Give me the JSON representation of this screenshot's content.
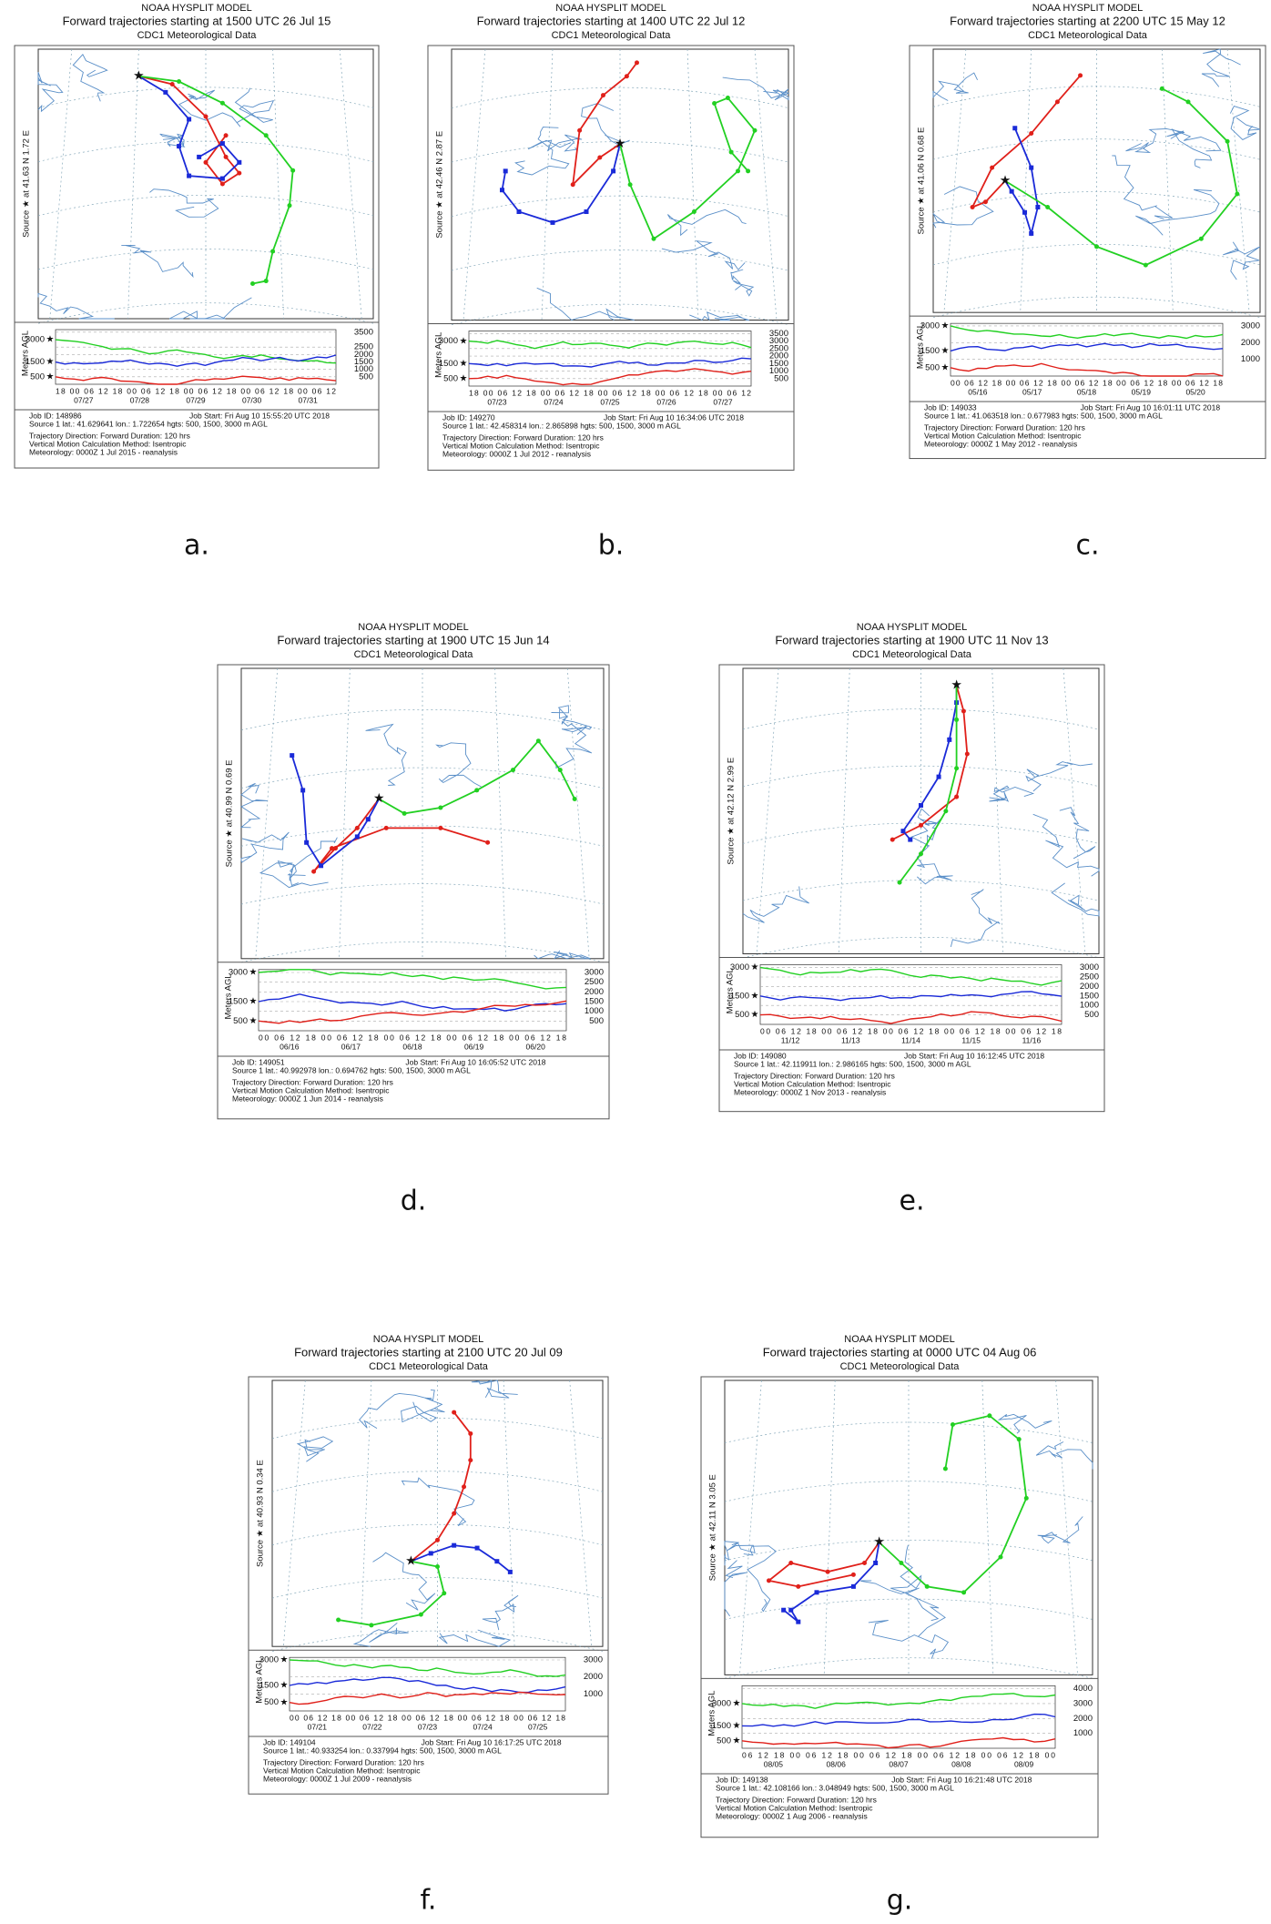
{
  "panels": [
    {
      "letter": "a.",
      "model": "NOAA HYSPLIT MODEL",
      "title": "Forward trajectories starting at 1500 UTC 26 Jul 15",
      "met_title": "CDC1 Meteorological Data",
      "source": "Source ★ at 41.63 N 1.72 E",
      "y_label": "Meters AGL",
      "levels": [
        3000,
        1500,
        500
      ],
      "right_ticks": [
        3500,
        2500,
        2000,
        1500,
        1000,
        500
      ],
      "hours": "18 00 06 12 18 00 06 12 18 00 06 12 18 00 06 12 18 00 06 12",
      "dates": [
        "07/27",
        "07/28",
        "07/29",
        "07/30",
        "07/31"
      ],
      "job_id": "Job ID: 148986",
      "job_start": "Job Start: Fri Aug 10 15:55:20 UTC 2018",
      "footer": [
        "Source 1 lat.: 41.629641 lon.: 1.722654 hgts: 500, 1500, 3000 m AGL",
        "Trajectory Direction: Forward    Duration: 120 hrs",
        "Vertical Motion Calculation Method:    Isentropic",
        "Meteorology: 0000Z 1 Jul 2015 - reanalysis"
      ]
    },
    {
      "letter": "b.",
      "model": "NOAA HYSPLIT MODEL",
      "title": "Forward trajectories starting at 1400 UTC 22 Jul 12",
      "met_title": "CDC1 Meteorological Data",
      "source": "Source ★ at 42.46 N 2.87 E",
      "y_label": "Meters AGL",
      "levels": [
        3000,
        1500,
        500
      ],
      "right_ticks": [
        3500,
        3000,
        2500,
        2000,
        1500,
        1000,
        500
      ],
      "hours": "18 00 06 12 18 00 06 12 18 00 06 12 18 00 06 12 18 00 06 12",
      "dates": [
        "07/23",
        "07/24",
        "07/25",
        "07/26",
        "07/27"
      ],
      "job_id": "Job ID: 149270",
      "job_start": "Job Start: Fri Aug 10 16:34:06 UTC 2018",
      "footer": [
        "Source 1 lat.: 42.458314 lon.: 2.865898 hgts: 500, 1500, 3000 m AGL",
        "Trajectory Direction: Forward    Duration: 120 hrs",
        "Vertical Motion Calculation Method:    Isentropic",
        "Meteorology: 0000Z 1 Jul 2012 - reanalysis"
      ]
    },
    {
      "letter": "c.",
      "model": "NOAA HYSPLIT MODEL",
      "title": "Forward trajectories starting at 2200 UTC 15 May 12",
      "met_title": "CDC1 Meteorological Data",
      "source": "Source ★ at 41.06 N 0.68 E",
      "y_label": "Meters AGL",
      "levels": [
        3000,
        1500,
        500
      ],
      "right_ticks": [
        3000,
        2000,
        1000
      ],
      "hours": "00 06 12 18 00 06 12 18 00 06 12 18 00 06 12 18 00 06 12 18",
      "dates": [
        "05/16",
        "05/17",
        "05/18",
        "05/19",
        "05/20"
      ],
      "job_id": "Job ID: 149033",
      "job_start": "Job Start: Fri Aug 10 16:01:11 UTC 2018",
      "footer": [
        "Source 1 lat.: 41.063518 lon.: 0.677983 hgts: 500, 1500, 3000 m AGL",
        "Trajectory Direction: Forward    Duration: 120 hrs",
        "Vertical Motion Calculation Method:    Isentropic",
        "Meteorology: 0000Z 1 May 2012 - reanalysis"
      ]
    },
    {
      "letter": "d.",
      "model": "NOAA HYSPLIT MODEL",
      "title": "Forward trajectories starting at 1900 UTC 15 Jun 14",
      "met_title": "CDC1 Meteorological Data",
      "source": "Source ★ at 40.99 N 0.69 E",
      "y_label": "Meters AGL",
      "levels": [
        3000,
        1500,
        500
      ],
      "right_ticks": [
        3000,
        2500,
        2000,
        1500,
        1000,
        500
      ],
      "hours": "00 06 12 18 00 06 12 18 00 06 12 18 00 06 12 18 00 06 12 18",
      "dates": [
        "06/16",
        "06/17",
        "06/18",
        "06/19",
        "06/20"
      ],
      "job_id": "Job ID: 149051",
      "job_start": "Job Start: Fri Aug 10 16:05:52 UTC 2018",
      "footer": [
        "Source 1 lat.: 40.992978 lon.: 0.694762 hgts: 500, 1500, 3000 m AGL",
        "Trajectory Direction: Forward    Duration: 120 hrs",
        "Vertical Motion Calculation Method:    Isentropic",
        "Meteorology: 0000Z 1 Jun 2014 - reanalysis"
      ]
    },
    {
      "letter": "e.",
      "model": "NOAA HYSPLIT MODEL",
      "title": "Forward trajectories starting at 1900 UTC 11 Nov 13",
      "met_title": "CDC1 Meteorological Data",
      "source": "Source ★ at 42.12 N 2.99 E",
      "y_label": "Meters AGL",
      "levels": [
        3000,
        1500,
        500
      ],
      "right_ticks": [
        3000,
        2500,
        2000,
        1500,
        1000,
        500
      ],
      "hours": "00 06 12 18 00 06 12 18 00 06 12 18 00 06 12 18 00 06 12 18",
      "dates": [
        "11/12",
        "11/13",
        "11/14",
        "11/15",
        "11/16"
      ],
      "job_id": "Job ID: 149080",
      "job_start": "Job Start: Fri Aug 10 16:12:45 UTC 2018",
      "footer": [
        "Source 1 lat.: 42.119911 lon.: 2.986165 hgts: 500, 1500, 3000 m AGL",
        "Trajectory Direction: Forward    Duration: 120 hrs",
        "Vertical Motion Calculation Method:    Isentropic",
        "Meteorology: 0000Z 1 Nov 2013 - reanalysis"
      ]
    },
    {
      "letter": "f.",
      "model": "NOAA HYSPLIT MODEL",
      "title": "Forward trajectories starting at 2100 UTC 20 Jul 09",
      "met_title": "CDC1 Meteorological Data",
      "source": "Source ★ at 40.93 N 0.34 E",
      "y_label": "Meters AGL",
      "levels": [
        3000,
        1500,
        500
      ],
      "right_ticks": [
        3000,
        2000,
        1000
      ],
      "hours": "00 06 12 18 00 06 12 18 00 06 12 18 00 06 12 18 00 06 12 18",
      "dates": [
        "07/21",
        "07/22",
        "07/23",
        "07/24",
        "07/25"
      ],
      "job_id": "Job ID: 149104",
      "job_start": "Job Start: Fri Aug 10 16:17:25 UTC 2018",
      "footer": [
        "Source 1 lat.: 40.933254 lon.: 0.337994 hgts: 500, 1500, 3000 m AGL",
        "Trajectory Direction: Forward    Duration: 120 hrs",
        "Vertical Motion Calculation Method:    Isentropic",
        "Meteorology: 0000Z 1 Jul 2009 - reanalysis"
      ]
    },
    {
      "letter": "g.",
      "model": "NOAA HYSPLIT MODEL",
      "title": "Forward trajectories starting at 0000 UTC 04 Aug 06",
      "met_title": "CDC1 Meteorological Data",
      "source": "Source ★ at 42.11 N 3.05 E",
      "y_label": "Meters AGL",
      "levels": [
        3000,
        1500,
        500
      ],
      "right_ticks": [
        4000,
        3000,
        2000,
        1000
      ],
      "hours": "06 12 18 00 06 12 18 00 06 12 18 00 06 12 18 00 06 12 18 00",
      "dates": [
        "08/05",
        "08/06",
        "08/07",
        "08/08",
        "08/09"
      ],
      "job_id": "Job ID: 149138",
      "job_start": "Job Start: Fri Aug 10 16:21:48 UTC 2018",
      "footer": [
        "Source 1 lat.: 42.108166 lon.: 3.048949 hgts: 500, 1500, 3000 m AGL",
        "Trajectory Direction: Forward    Duration: 120 hrs",
        "Vertical Motion Calculation Method:    Isentropic",
        "Meteorology: 0000Z 1 Aug 2006 - reanalysis"
      ]
    }
  ]
}
